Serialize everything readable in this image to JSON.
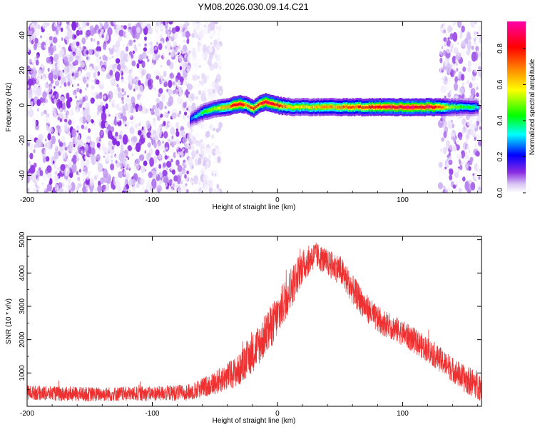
{
  "title": "YM08.2026.030.09.14.C21",
  "colors": {
    "snr_line": "#ee3030",
    "axis": "#000000",
    "background": "#ffffff"
  },
  "chart_data": [
    {
      "type": "heatmap",
      "name": "spectrogram",
      "xlabel": "Height of straight line (km)",
      "ylabel": "Frequency (Hz)",
      "xlim": [
        -200,
        163
      ],
      "ylim": [
        -50,
        48
      ],
      "xticks": [
        -200,
        -100,
        0,
        100
      ],
      "yticks": [
        40,
        20,
        0,
        -20,
        -40
      ],
      "colorbar": {
        "label": "Normalized spectral amplitude",
        "range": [
          0,
          0.95
        ],
        "ticks": [
          0.0,
          0.2,
          0.4,
          0.6,
          0.8
        ]
      },
      "regions": [
        {
          "description": "noise",
          "x_range": [
            -200,
            -70
          ],
          "amplitude_range": [
            0.0,
            0.12
          ]
        },
        {
          "description": "noise-fade",
          "x_range": [
            -70,
            -45
          ],
          "amplitude_range": [
            0.0,
            0.05
          ]
        },
        {
          "description": "noise",
          "x_range": [
            130,
            163
          ],
          "amplitude_range": [
            0.0,
            0.1
          ]
        }
      ],
      "signal_ridge": {
        "x": [
          -70,
          -60,
          -50,
          -40,
          -35,
          -30,
          -25,
          -20,
          -15,
          -10,
          -5,
          0,
          10,
          30,
          60,
          80,
          100,
          120,
          140,
          160
        ],
        "frequency": [
          -8,
          -4,
          -2,
          -1,
          0,
          1,
          0,
          -2,
          1,
          2,
          1,
          0,
          -1,
          -1,
          -1,
          -1,
          -1,
          -1,
          -1,
          -1
        ],
        "peak_amplitude": [
          0.25,
          0.45,
          0.55,
          0.7,
          0.85,
          0.9,
          0.7,
          0.85,
          0.8,
          0.9,
          0.85,
          0.8,
          0.6,
          0.65,
          0.75,
          0.85,
          0.9,
          0.9,
          0.5,
          0.35
        ]
      }
    },
    {
      "type": "line",
      "name": "snr",
      "xlabel": "Height of straight line (km)",
      "ylabel": "SNR (10 * v/v)",
      "xlim": [
        -200,
        163
      ],
      "ylim": [
        0,
        5100
      ],
      "xticks": [
        -200,
        -100,
        0,
        100
      ],
      "yticks": [
        1000,
        2000,
        3000,
        4000,
        5000
      ],
      "series": [
        {
          "name": "SNR",
          "envelope_x": [
            -200,
            -180,
            -150,
            -100,
            -70,
            -50,
            -40,
            -30,
            -20,
            -10,
            0,
            10,
            20,
            30,
            40,
            50,
            60,
            70,
            80,
            100,
            120,
            140,
            150,
            163
          ],
          "envelope_mean": [
            420,
            380,
            360,
            380,
            420,
            700,
            900,
            1100,
            1600,
            2100,
            2700,
            3500,
            4200,
            4550,
            4300,
            4100,
            3500,
            3000,
            2600,
            2200,
            1700,
            1100,
            800,
            600
          ],
          "noise_amplitude": [
            220,
            220,
            220,
            220,
            250,
            350,
            420,
            480,
            600,
            650,
            650,
            650,
            500,
            400,
            400,
            450,
            450,
            420,
            400,
            380,
            380,
            380,
            420,
            450
          ]
        }
      ]
    }
  ]
}
